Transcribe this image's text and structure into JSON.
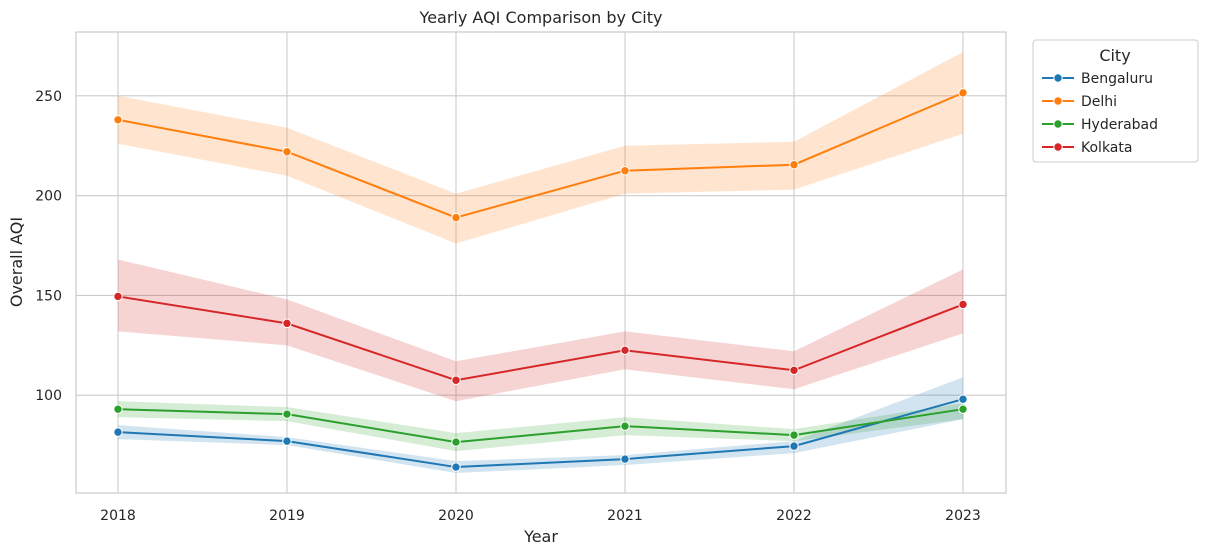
{
  "chart_data": {
    "type": "line",
    "title": "Yearly AQI Comparison by City",
    "xlabel": "Year",
    "ylabel": "Overall AQI",
    "x": [
      2018,
      2019,
      2020,
      2021,
      2022,
      2023
    ],
    "x_tick_labels": [
      "2018",
      "2019",
      "2020",
      "2021",
      "2022",
      "2023"
    ],
    "yticks": [
      100,
      150,
      200,
      250
    ],
    "y_tick_labels": [
      "100",
      "150",
      "200",
      "250"
    ],
    "ylim": [
      51,
      282
    ],
    "grid": true,
    "legend": {
      "title": "City",
      "placement": "upper-right-outside"
    },
    "series": [
      {
        "name": "Bengaluru",
        "color": "#1f77b4",
        "values": [
          81.5,
          77,
          64,
          68,
          74.5,
          98
        ],
        "ci_low": [
          78,
          75,
          61,
          65,
          71,
          88
        ],
        "ci_high": [
          85,
          79,
          67,
          70,
          77,
          109
        ]
      },
      {
        "name": "Delhi",
        "color": "#ff7f0e",
        "values": [
          238,
          222,
          189,
          212.5,
          215.5,
          251.5
        ],
        "ci_low": [
          226,
          210,
          176,
          201,
          203,
          231
        ],
        "ci_high": [
          250,
          234,
          201,
          225,
          227,
          272
        ]
      },
      {
        "name": "Hyderabad",
        "color": "#2ca02c",
        "values": [
          93,
          90.5,
          76.5,
          84.5,
          80,
          93
        ],
        "ci_low": [
          89,
          87,
          72,
          80,
          77,
          88
        ],
        "ci_high": [
          97,
          94,
          81,
          89,
          83,
          96
        ]
      },
      {
        "name": "Kolkata",
        "color": "#d62728",
        "values": [
          149.5,
          136,
          107.5,
          122.5,
          112.5,
          145.5
        ],
        "ci_low": [
          132,
          125,
          97,
          113,
          103,
          131
        ],
        "ci_high": [
          168,
          148,
          117,
          132,
          122,
          163
        ]
      }
    ]
  }
}
